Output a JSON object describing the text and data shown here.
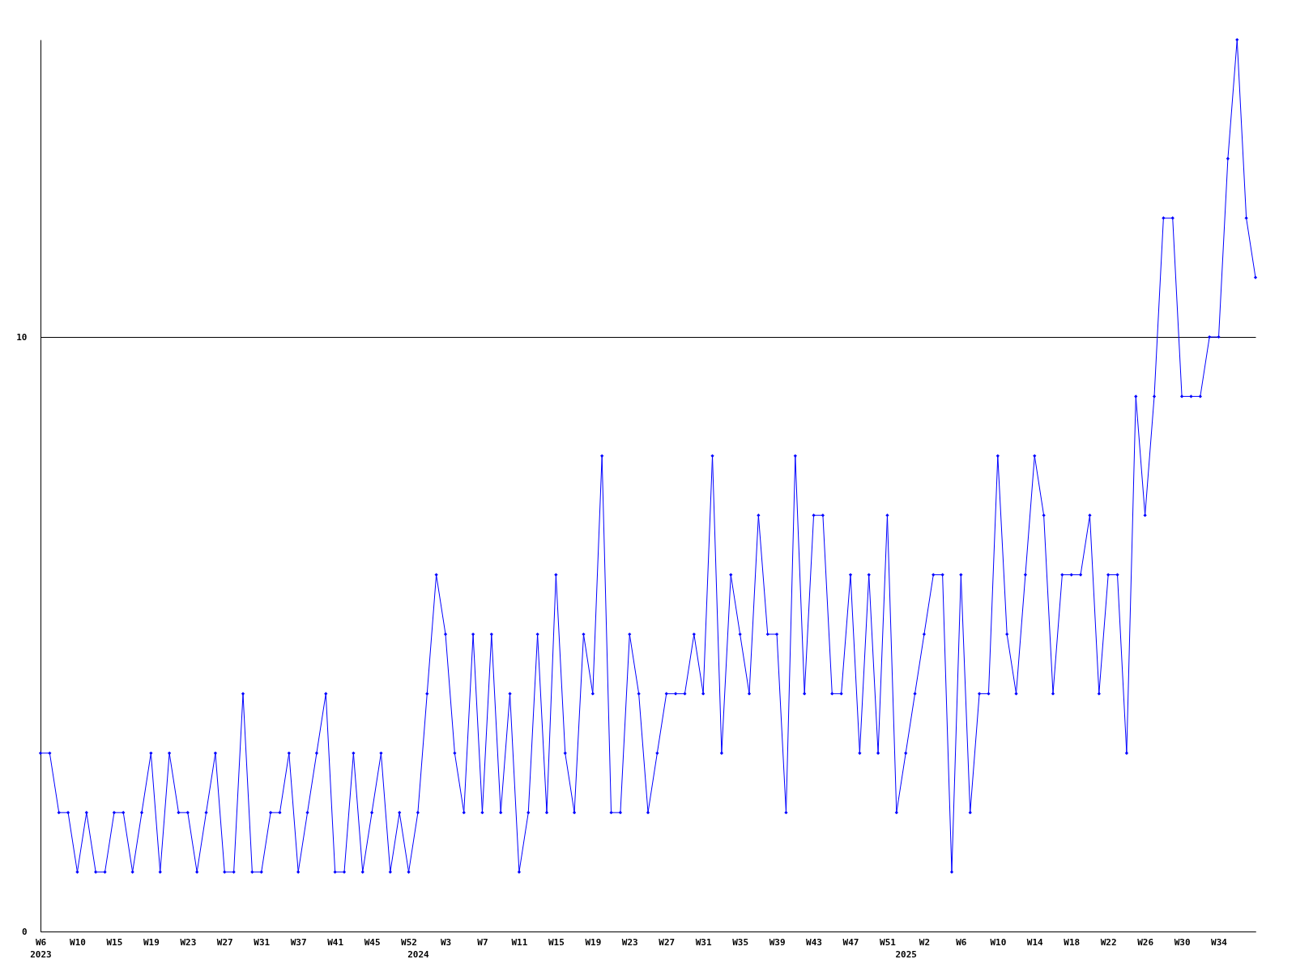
{
  "chart_data": {
    "type": "line",
    "categories": [
      "W6\n2023",
      null,
      null,
      null,
      "W10",
      null,
      null,
      null,
      "W15",
      null,
      null,
      null,
      "W19",
      null,
      null,
      null,
      "W23",
      null,
      null,
      null,
      "W27",
      null,
      null,
      null,
      "W31",
      null,
      null,
      null,
      "W37",
      null,
      null,
      null,
      "W41",
      null,
      null,
      null,
      "W45",
      null,
      null,
      null,
      "W52",
      "\n2024",
      null,
      null,
      "W3",
      null,
      null,
      null,
      "W7",
      null,
      null,
      null,
      "W11",
      null,
      null,
      null,
      "W15",
      null,
      null,
      null,
      "W19",
      null,
      null,
      null,
      "W23",
      null,
      null,
      null,
      "W27",
      null,
      null,
      null,
      "W31",
      null,
      null,
      null,
      "W35",
      null,
      null,
      null,
      "W39",
      null,
      null,
      null,
      "W43",
      null,
      null,
      null,
      "W47",
      null,
      null,
      null,
      "W51",
      null,
      "\n2025",
      null,
      "W2",
      null,
      null,
      null,
      "W6",
      null,
      null,
      null,
      "W10",
      null,
      null,
      null,
      "W14",
      null,
      null,
      null,
      "W18",
      null,
      null,
      null,
      "W22",
      null,
      null,
      null,
      "W26",
      null,
      null,
      null,
      "W30",
      null,
      null,
      null,
      "W34",
      null,
      null,
      null,
      null
    ],
    "values": [
      3,
      3,
      2,
      2,
      1,
      2,
      1,
      1,
      2,
      2,
      1,
      2,
      3,
      1,
      3,
      2,
      2,
      1,
      2,
      3,
      1,
      1,
      4,
      1,
      1,
      2,
      2,
      3,
      1,
      2,
      3,
      4,
      1,
      1,
      3,
      1,
      2,
      3,
      1,
      2,
      1,
      2,
      4,
      6,
      5,
      3,
      2,
      5,
      2,
      5,
      2,
      4,
      1,
      2,
      5,
      2,
      6,
      3,
      2,
      5,
      4,
      8,
      2,
      2,
      5,
      4,
      2,
      3,
      4,
      4,
      4,
      5,
      4,
      8,
      3,
      6,
      5,
      4,
      7,
      5,
      5,
      2,
      8,
      4,
      7,
      7,
      4,
      4,
      6,
      3,
      6,
      3,
      7,
      2,
      3,
      4,
      5,
      6,
      6,
      1,
      6,
      2,
      4,
      4,
      8,
      5,
      4,
      6,
      8,
      7,
      4,
      6,
      6,
      6,
      7,
      4,
      6,
      6,
      3,
      9,
      7,
      9,
      12,
      12,
      9,
      9,
      9,
      10,
      10,
      13,
      15,
      12,
      11
    ],
    "color": "#0000ff",
    "marker": "diamond",
    "line_style": "solid",
    "ylim": [
      0,
      15
    ],
    "yticks": [
      0,
      10
    ],
    "grid": "y"
  }
}
